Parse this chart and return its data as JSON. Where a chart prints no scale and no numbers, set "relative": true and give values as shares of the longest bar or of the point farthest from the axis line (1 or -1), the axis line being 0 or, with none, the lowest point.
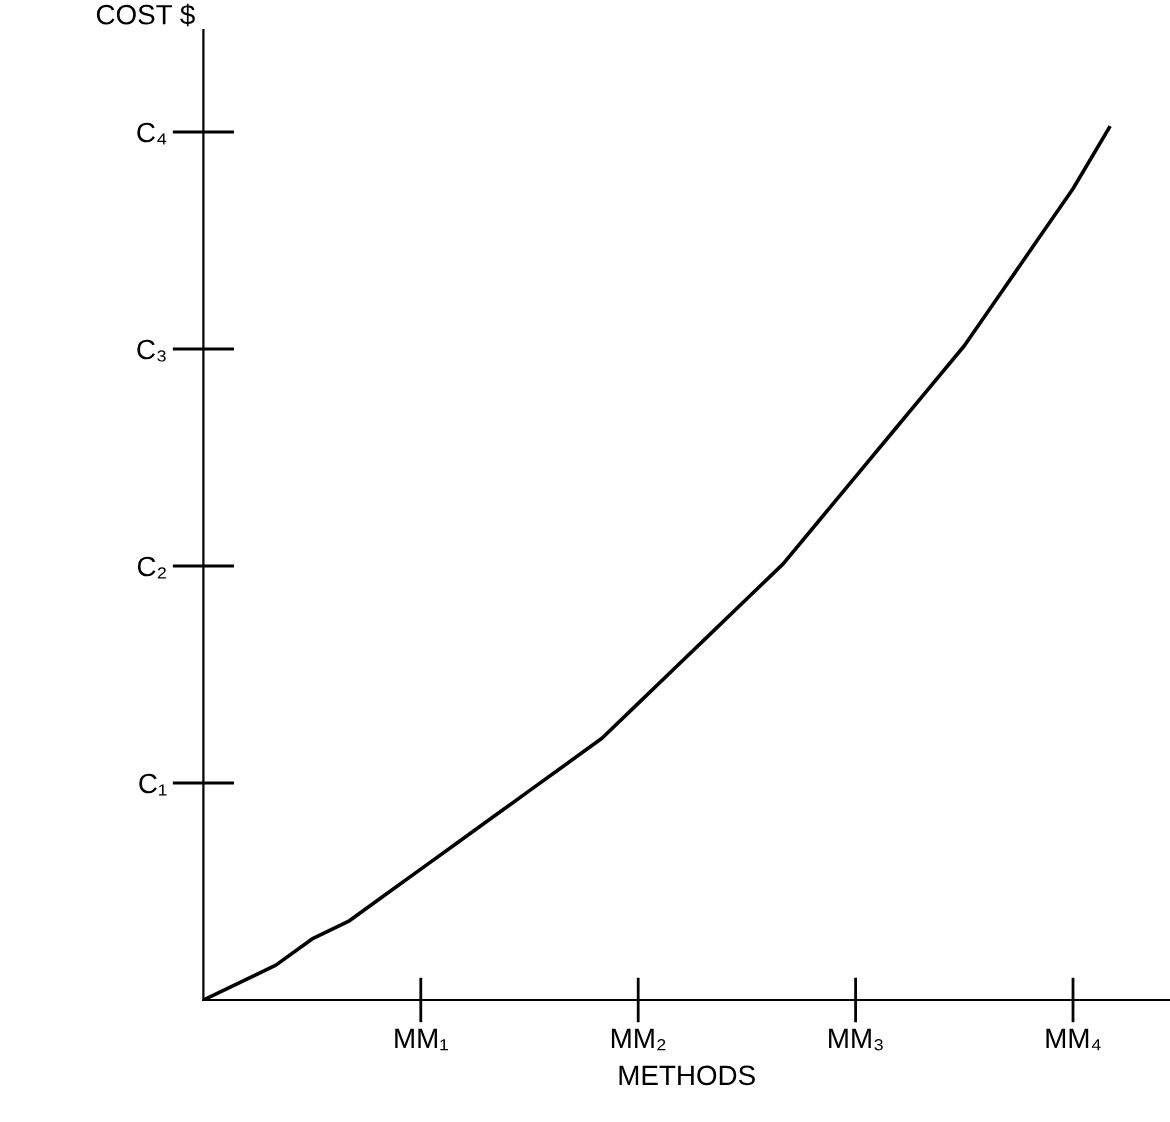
{
  "chart_data": {
    "type": "line",
    "xlabel": "METHODS",
    "ylabel": "COST $",
    "relative": true,
    "categories": [
      null,
      null,
      null,
      null,
      null,
      null,
      "MM₁",
      null,
      null,
      null,
      null,
      null,
      "MM₂",
      null,
      null,
      null,
      null,
      null,
      "MM₃",
      null,
      null,
      null,
      null,
      null,
      "MM₄",
      null
    ],
    "series": [
      {
        "color": "#000000",
        "values": [
          0,
          0.02,
          0.04,
          0.07,
          0.09,
          0.12,
          0.15,
          0.18,
          0.21,
          0.24,
          0.27,
          0.3,
          0.34,
          0.38,
          0.42,
          0.46,
          0.5,
          0.55,
          0.6,
          0.65,
          0.7,
          0.75,
          0.81,
          0.87,
          0.93,
          1
        ]
      }
    ],
    "annotations": [
      "C₁",
      "C₂",
      "C₃",
      "C₄"
    ],
    "grid": false,
    "legend": false,
    "marker": "none",
    "line_style": "solid"
  }
}
